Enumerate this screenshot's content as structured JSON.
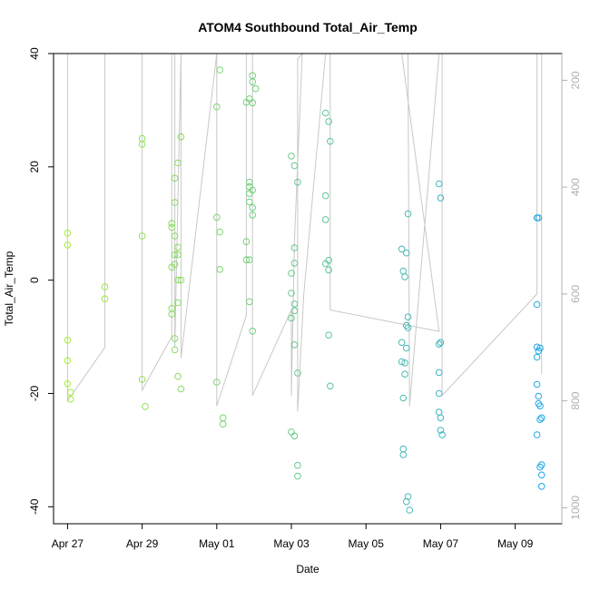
{
  "chart_data": {
    "type": "scatter",
    "title": "ATOM4 Southbound Total_Air_Temp",
    "xlabel": "Date",
    "ylabel": "Total_Air_Temp",
    "x_ticks": [
      "Apr 27",
      "Apr 29",
      "May 01",
      "May 03",
      "May 05",
      "May 07",
      "May 09"
    ],
    "y_ticks": [
      -40,
      -20,
      0,
      20,
      40
    ],
    "y_right_ticks": [
      200,
      400,
      600,
      800,
      1000
    ],
    "xlim": [
      "2018-04-26T15:00",
      "2018-05-10T06:00"
    ],
    "ylim": [
      -43,
      40
    ],
    "y_right_lim": [
      1030,
      150
    ],
    "y_right_inverted": true,
    "grid": false,
    "colors": {
      "points_start": "#aaee33",
      "points_end": "#1aa3ee",
      "pressure_line": "#c8c8c8"
    },
    "series": [
      {
        "values": [
          {
            "x": "2018-04-27T00:00",
            "y": 8.3
          },
          {
            "x": "2018-04-27T00:00",
            "y": 6.2
          },
          {
            "x": "2018-04-27T00:00",
            "y": -10.6
          },
          {
            "x": "2018-04-27T00:00",
            "y": -14.2
          },
          {
            "x": "2018-04-27T00:00",
            "y": -18.3
          },
          {
            "x": "2018-04-27T02:00",
            "y": -19.8
          },
          {
            "x": "2018-04-27T02:00",
            "y": -21.0
          },
          {
            "x": "2018-04-28T00:00",
            "y": -1.2
          },
          {
            "x": "2018-04-28T00:00",
            "y": -3.3
          },
          {
            "x": "2018-04-29T00:00",
            "y": 25.0
          },
          {
            "x": "2018-04-29T00:00",
            "y": 24.0
          },
          {
            "x": "2018-04-29T00:00",
            "y": 7.8
          },
          {
            "x": "2018-04-29T00:00",
            "y": -17.5
          },
          {
            "x": "2018-04-29T02:00",
            "y": -22.3
          },
          {
            "x": "2018-04-29T19:00",
            "y": 10.0
          },
          {
            "x": "2018-04-29T19:00",
            "y": 9.3
          },
          {
            "x": "2018-04-29T19:00",
            "y": 2.3
          },
          {
            "x": "2018-04-29T19:00",
            "y": -5.0
          },
          {
            "x": "2018-04-29T19:00",
            "y": -6.0
          },
          {
            "x": "2018-04-29T21:00",
            "y": 18.0
          },
          {
            "x": "2018-04-29T21:00",
            "y": 13.7
          },
          {
            "x": "2018-04-29T21:00",
            "y": 7.8
          },
          {
            "x": "2018-04-29T21:00",
            "y": 4.5
          },
          {
            "x": "2018-04-29T21:00",
            "y": 2.8
          },
          {
            "x": "2018-04-29T21:00",
            "y": -10.3
          },
          {
            "x": "2018-04-29T21:00",
            "y": -12.3
          },
          {
            "x": "2018-04-29T23:00",
            "y": 20.7
          },
          {
            "x": "2018-04-29T23:00",
            "y": 5.8
          },
          {
            "x": "2018-04-29T23:00",
            "y": 4.5
          },
          {
            "x": "2018-04-29T23:00",
            "y": 0.0
          },
          {
            "x": "2018-04-29T23:00",
            "y": -4.0
          },
          {
            "x": "2018-04-29T23:00",
            "y": -17.0
          },
          {
            "x": "2018-04-30T01:00",
            "y": 25.3
          },
          {
            "x": "2018-04-30T01:00",
            "y": 0.0
          },
          {
            "x": "2018-04-30T01:00",
            "y": -19.2
          },
          {
            "x": "2018-05-01T00:00",
            "y": 30.6
          },
          {
            "x": "2018-05-01T00:00",
            "y": 11.1
          },
          {
            "x": "2018-05-01T00:00",
            "y": -18.0
          },
          {
            "x": "2018-05-01T02:00",
            "y": 37.1
          },
          {
            "x": "2018-05-01T02:00",
            "y": 8.5
          },
          {
            "x": "2018-05-01T02:00",
            "y": 1.9
          },
          {
            "x": "2018-05-01T04:00",
            "y": -24.3
          },
          {
            "x": "2018-05-01T04:00",
            "y": -25.4
          },
          {
            "x": "2018-05-01T19:00",
            "y": 31.4
          },
          {
            "x": "2018-05-01T19:00",
            "y": 6.8
          },
          {
            "x": "2018-05-01T19:00",
            "y": 3.6
          },
          {
            "x": "2018-05-01T21:00",
            "y": 32.0
          },
          {
            "x": "2018-05-01T21:00",
            "y": 17.3
          },
          {
            "x": "2018-05-01T21:00",
            "y": 16.5
          },
          {
            "x": "2018-05-01T21:00",
            "y": 15.3
          },
          {
            "x": "2018-05-01T21:00",
            "y": 13.8
          },
          {
            "x": "2018-05-01T21:00",
            "y": 3.6
          },
          {
            "x": "2018-05-01T21:00",
            "y": -3.8
          },
          {
            "x": "2018-05-01T23:00",
            "y": 36.1
          },
          {
            "x": "2018-05-01T23:00",
            "y": 35.0
          },
          {
            "x": "2018-05-01T23:00",
            "y": 31.3
          },
          {
            "x": "2018-05-01T23:00",
            "y": 15.9
          },
          {
            "x": "2018-05-01T23:00",
            "y": 12.8
          },
          {
            "x": "2018-05-01T23:00",
            "y": 11.5
          },
          {
            "x": "2018-05-01T23:00",
            "y": -9.0
          },
          {
            "x": "2018-05-02T01:00",
            "y": 33.8
          },
          {
            "x": "2018-05-03T00:00",
            "y": 21.9
          },
          {
            "x": "2018-05-03T00:00",
            "y": 1.2
          },
          {
            "x": "2018-05-03T00:00",
            "y": -2.3
          },
          {
            "x": "2018-05-03T00:00",
            "y": -6.7
          },
          {
            "x": "2018-05-03T00:00",
            "y": -26.8
          },
          {
            "x": "2018-05-03T02:00",
            "y": 20.2
          },
          {
            "x": "2018-05-03T02:00",
            "y": 5.7
          },
          {
            "x": "2018-05-03T02:00",
            "y": 3.0
          },
          {
            "x": "2018-05-03T02:00",
            "y": -4.2
          },
          {
            "x": "2018-05-03T02:00",
            "y": -5.4
          },
          {
            "x": "2018-05-03T02:00",
            "y": -11.4
          },
          {
            "x": "2018-05-03T02:00",
            "y": -27.5
          },
          {
            "x": "2018-05-03T04:00",
            "y": 17.3
          },
          {
            "x": "2018-05-03T04:00",
            "y": -16.4
          },
          {
            "x": "2018-05-03T04:00",
            "y": -32.7
          },
          {
            "x": "2018-05-03T04:00",
            "y": -34.6
          },
          {
            "x": "2018-05-03T22:00",
            "y": 29.5
          },
          {
            "x": "2018-05-03T22:00",
            "y": 14.9
          },
          {
            "x": "2018-05-03T22:00",
            "y": 10.7
          },
          {
            "x": "2018-05-03T22:00",
            "y": 2.9
          },
          {
            "x": "2018-05-04T00:00",
            "y": 28.0
          },
          {
            "x": "2018-05-04T00:00",
            "y": 3.5
          },
          {
            "x": "2018-05-04T00:00",
            "y": 1.8
          },
          {
            "x": "2018-05-04T00:00",
            "y": -9.7
          },
          {
            "x": "2018-05-04T01:00",
            "y": 24.5
          },
          {
            "x": "2018-05-04T01:00",
            "y": -18.7
          },
          {
            "x": "2018-05-05T23:00",
            "y": 5.5
          },
          {
            "x": "2018-05-05T23:00",
            "y": -11.0
          },
          {
            "x": "2018-05-05T23:00",
            "y": -14.4
          },
          {
            "x": "2018-05-06T00:00",
            "y": 1.6
          },
          {
            "x": "2018-05-06T00:00",
            "y": -20.8
          },
          {
            "x": "2018-05-06T00:00",
            "y": -29.8
          },
          {
            "x": "2018-05-06T00:00",
            "y": -30.8
          },
          {
            "x": "2018-05-06T01:00",
            "y": 0.6
          },
          {
            "x": "2018-05-06T01:00",
            "y": -14.6
          },
          {
            "x": "2018-05-06T01:00",
            "y": -16.6
          },
          {
            "x": "2018-05-06T02:00",
            "y": 4.8
          },
          {
            "x": "2018-05-06T02:00",
            "y": -8.0
          },
          {
            "x": "2018-05-06T02:00",
            "y": -12.0
          },
          {
            "x": "2018-05-06T02:00",
            "y": -39.1
          },
          {
            "x": "2018-05-06T03:00",
            "y": 11.7
          },
          {
            "x": "2018-05-06T03:00",
            "y": -6.5
          },
          {
            "x": "2018-05-06T03:00",
            "y": -8.4
          },
          {
            "x": "2018-05-06T03:00",
            "y": -38.2
          },
          {
            "x": "2018-05-06T04:00",
            "y": -40.6
          },
          {
            "x": "2018-05-06T23:00",
            "y": 17.0
          },
          {
            "x": "2018-05-06T23:00",
            "y": -11.3
          },
          {
            "x": "2018-05-06T23:00",
            "y": -16.3
          },
          {
            "x": "2018-05-06T23:00",
            "y": -20.0
          },
          {
            "x": "2018-05-06T23:00",
            "y": -23.3
          },
          {
            "x": "2018-05-07T00:00",
            "y": 14.5
          },
          {
            "x": "2018-05-07T00:00",
            "y": -11.0
          },
          {
            "x": "2018-05-07T00:00",
            "y": -24.3
          },
          {
            "x": "2018-05-07T00:00",
            "y": -26.5
          },
          {
            "x": "2018-05-07T01:00",
            "y": -27.3
          },
          {
            "x": "2018-05-09T14:00",
            "y": 11.0
          },
          {
            "x": "2018-05-09T14:00",
            "y": -4.3
          },
          {
            "x": "2018-05-09T14:00",
            "y": -11.8
          },
          {
            "x": "2018-05-09T14:00",
            "y": -13.6
          },
          {
            "x": "2018-05-09T14:00",
            "y": -18.4
          },
          {
            "x": "2018-05-09T14:00",
            "y": -27.3
          },
          {
            "x": "2018-05-09T15:00",
            "y": 11.0
          },
          {
            "x": "2018-05-09T15:00",
            "y": -12.5
          },
          {
            "x": "2018-05-09T15:00",
            "y": -20.5
          },
          {
            "x": "2018-05-09T15:00",
            "y": -21.8
          },
          {
            "x": "2018-05-09T16:00",
            "y": -12.0
          },
          {
            "x": "2018-05-09T16:00",
            "y": -22.2
          },
          {
            "x": "2018-05-09T16:00",
            "y": -24.6
          },
          {
            "x": "2018-05-09T16:00",
            "y": -33.0
          },
          {
            "x": "2018-05-09T17:00",
            "y": -24.3
          },
          {
            "x": "2018-05-09T17:00",
            "y": -32.6
          },
          {
            "x": "2018-05-09T17:00",
            "y": -34.4
          },
          {
            "x": "2018-05-09T17:00",
            "y": -36.4
          }
        ]
      }
    ],
    "pressure_trace": [
      {
        "x": "2018-04-27T00:00",
        "p": 150
      },
      {
        "x": "2018-04-27T00:00",
        "p": 500
      },
      {
        "x": "2018-04-27T00:00",
        "p": 800
      },
      {
        "x": "2018-04-28T00:00",
        "p": 700
      },
      {
        "x": "2018-04-28T00:00",
        "p": 380
      },
      {
        "x": "2018-04-28T00:00",
        "p": 150
      },
      {
        "x": "2018-04-29T00:00",
        "p": 150
      },
      {
        "x": "2018-04-29T00:00",
        "p": 780
      },
      {
        "x": "2018-04-29T19:00",
        "p": 680
      },
      {
        "x": "2018-04-29T19:00",
        "p": 150
      },
      {
        "x": "2018-04-29T21:00",
        "p": 150
      },
      {
        "x": "2018-04-29T21:00",
        "p": 700
      },
      {
        "x": "2018-04-30T01:00",
        "p": 150
      },
      {
        "x": "2018-04-30T01:00",
        "p": 720
      },
      {
        "x": "2018-05-01T00:00",
        "p": 150
      },
      {
        "x": "2018-05-01T00:00",
        "p": 810
      },
      {
        "x": "2018-05-01T19:00",
        "p": 640
      },
      {
        "x": "2018-05-01T19:00",
        "p": 150
      },
      {
        "x": "2018-05-01T23:00",
        "p": 150
      },
      {
        "x": "2018-05-01T23:00",
        "p": 790
      },
      {
        "x": "2018-05-03T00:00",
        "p": 630
      },
      {
        "x": "2018-05-03T00:00",
        "p": 790
      },
      {
        "x": "2018-05-03T02:00",
        "p": 500
      },
      {
        "x": "2018-05-03T07:00",
        "p": 150
      },
      {
        "x": "2018-05-03T04:00",
        "p": 160
      },
      {
        "x": "2018-05-03T04:00",
        "p": 820
      },
      {
        "x": "2018-05-03T08:00",
        "p": 600
      },
      {
        "x": "2018-05-03T22:00",
        "p": 150
      },
      {
        "x": "2018-05-04T01:00",
        "p": 150
      },
      {
        "x": "2018-05-04T01:00",
        "p": 630
      },
      {
        "x": "2018-05-06T23:00",
        "p": 670
      },
      {
        "x": "2018-05-05T23:00",
        "p": 150
      },
      {
        "x": "2018-05-06T00:00",
        "p": 150
      },
      {
        "x": "2018-05-06T03:00",
        "p": 150
      },
      {
        "x": "2018-05-06T04:00",
        "p": 810
      },
      {
        "x": "2018-05-06T23:00",
        "p": 150
      },
      {
        "x": "2018-05-07T01:00",
        "p": 150
      },
      {
        "x": "2018-05-07T01:00",
        "p": 790
      },
      {
        "x": "2018-05-09T14:00",
        "p": 600
      },
      {
        "x": "2018-05-09T14:00",
        "p": 150
      },
      {
        "x": "2018-05-09T17:00",
        "p": 150
      },
      {
        "x": "2018-05-09T17:00",
        "p": 750
      }
    ]
  }
}
